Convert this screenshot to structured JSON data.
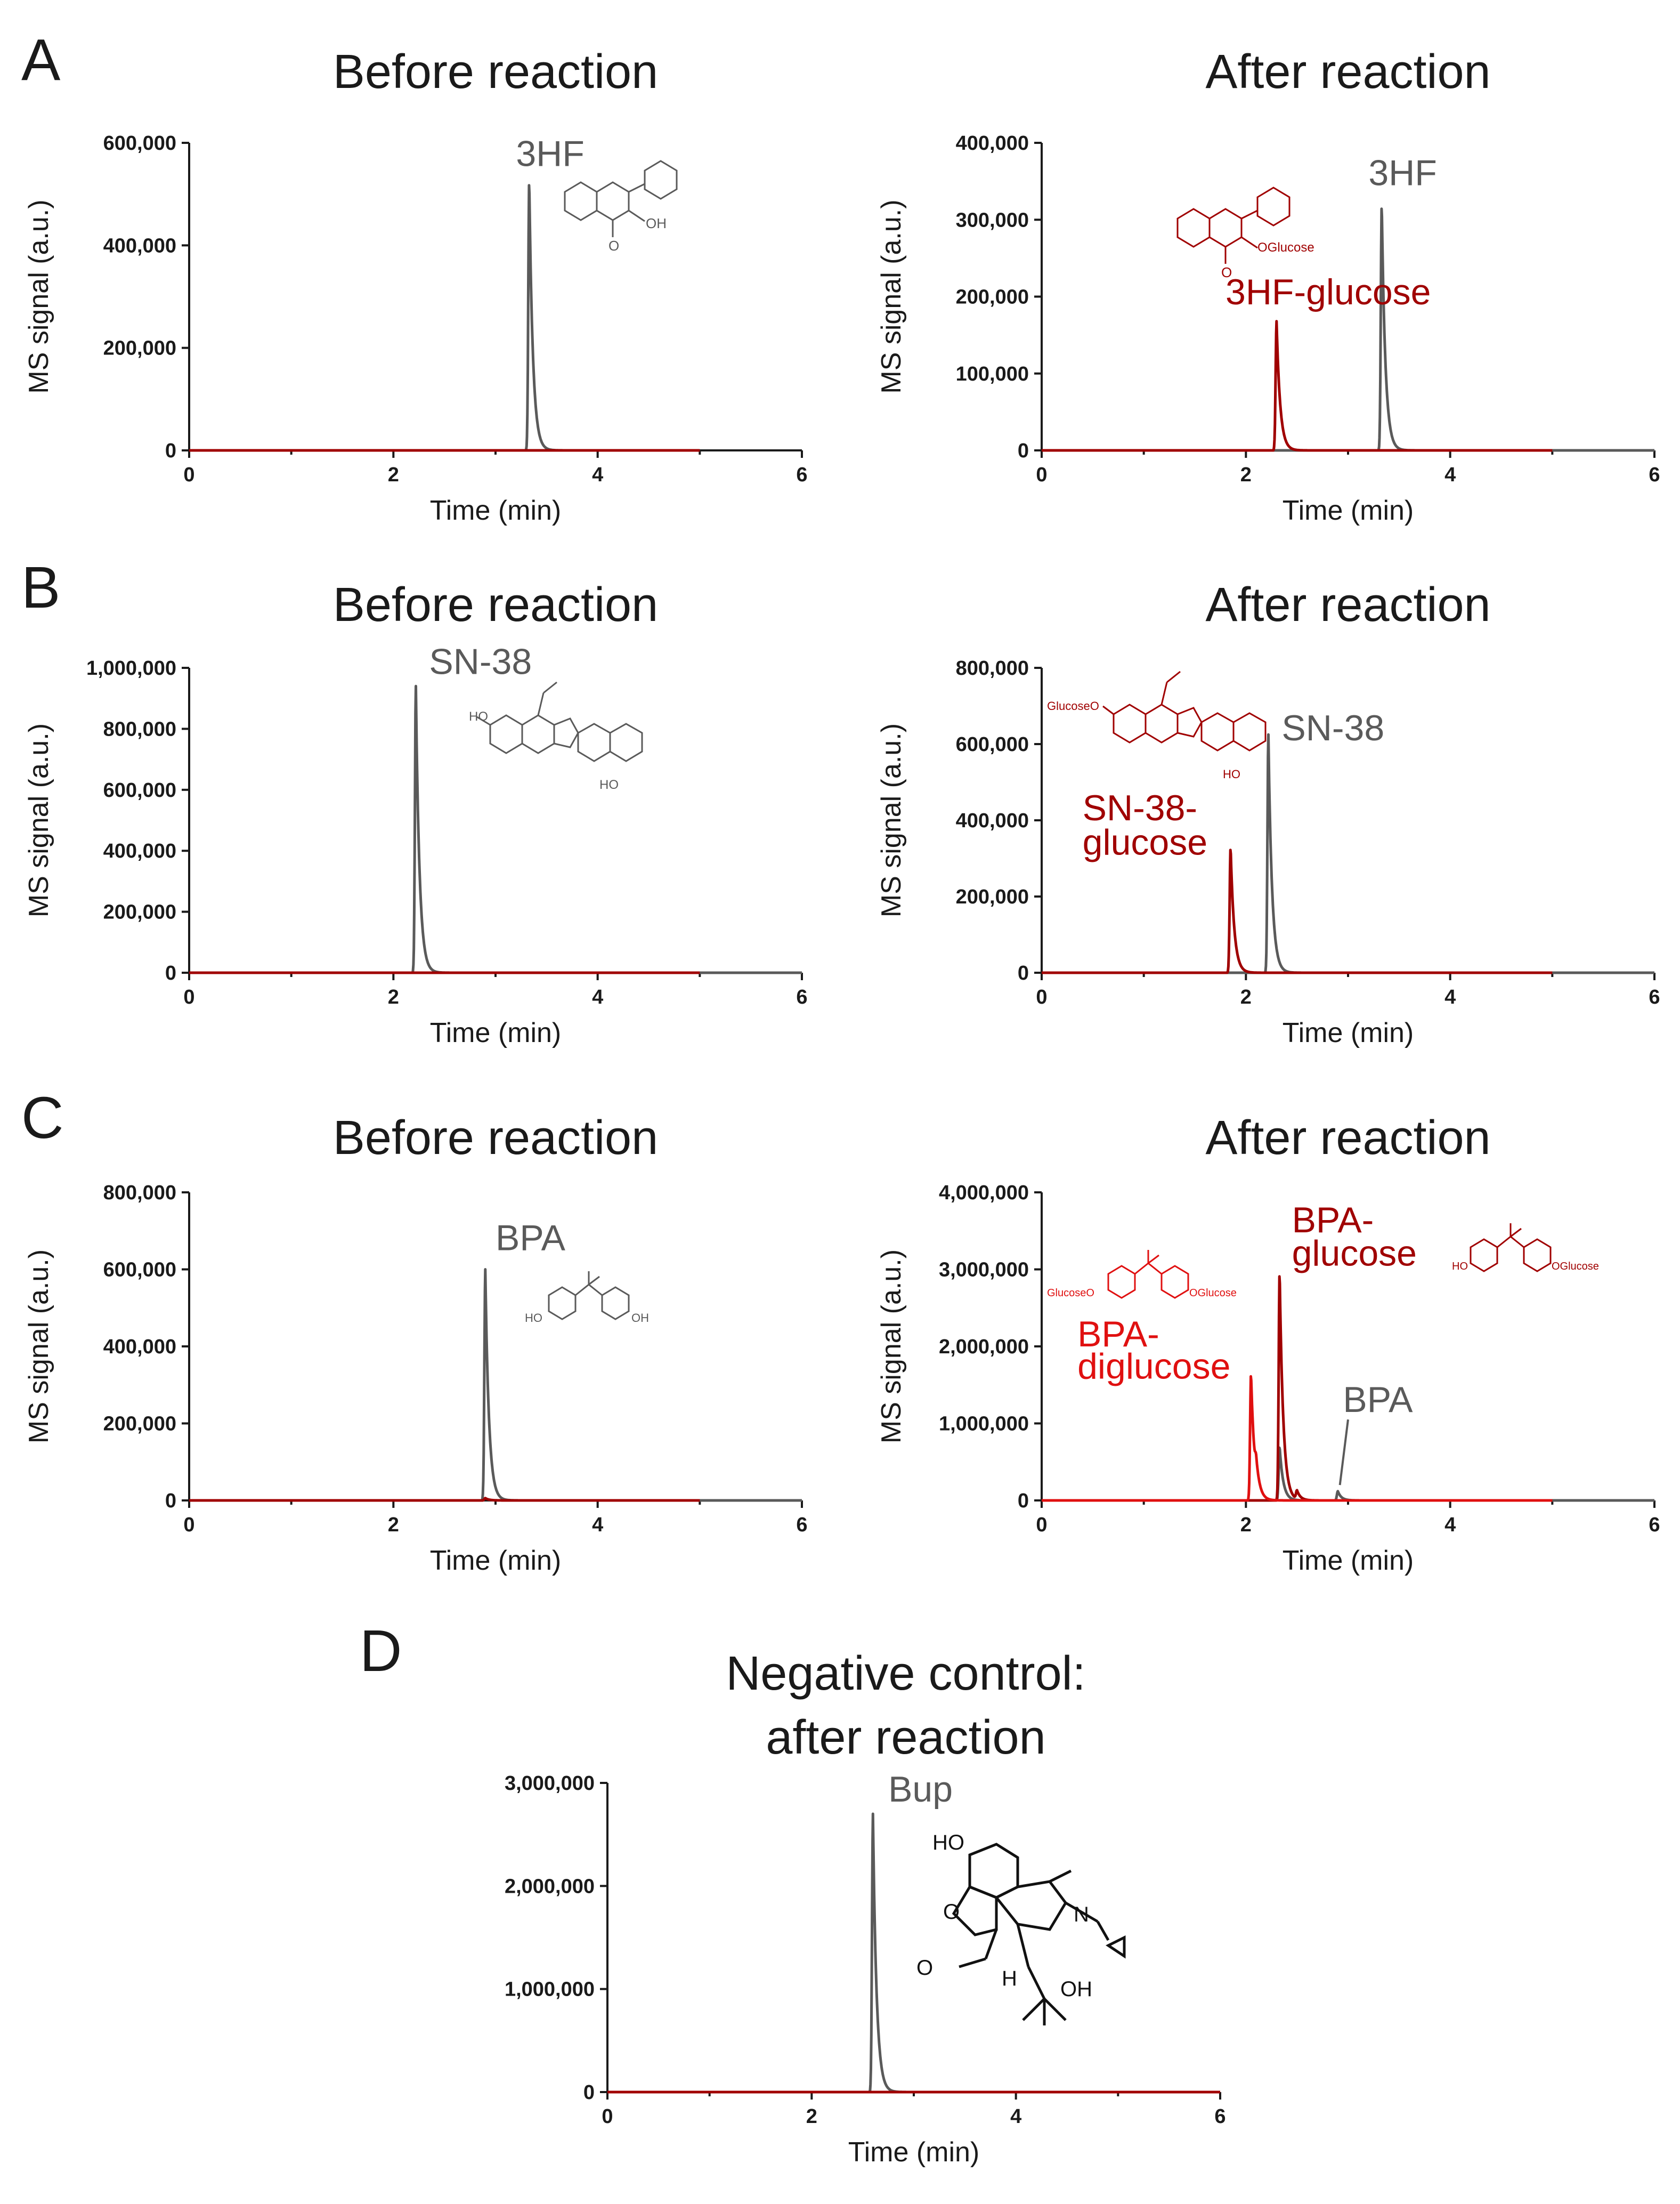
{
  "colors": {
    "gray": "#5a5a5a",
    "darkred": "#a00000",
    "red": "#e01010",
    "axis": "#1a1a1a"
  },
  "panels": [
    {
      "letter": "A",
      "charts": [
        0,
        1
      ]
    },
    {
      "letter": "B",
      "charts": [
        2,
        3
      ]
    },
    {
      "letter": "C",
      "charts": [
        4,
        5
      ]
    },
    {
      "letter": "D",
      "charts": [
        6
      ]
    }
  ],
  "chart_data": [
    {
      "type": "line",
      "title": "Before reaction",
      "xlabel": "Time (min)",
      "ylabel": "MS signal (a.u.)",
      "xlim": [
        0,
        6
      ],
      "ylim": [
        0,
        600000
      ],
      "xticks": [
        "0",
        "2",
        "4",
        "6"
      ],
      "yticks": [
        "0",
        "200,000",
        "400,000",
        "600,000"
      ],
      "series": [
        {
          "color": "gray",
          "trace_end": 5.0,
          "peaks": [
            {
              "x": 3.33,
              "y": 530000
            }
          ]
        },
        {
          "color": "darkred",
          "trace_end": 5.0,
          "peaks": []
        }
      ],
      "annotations": [
        {
          "text": "3HF",
          "color": "gray",
          "x": 3.2,
          "y": 555000
        }
      ]
    },
    {
      "type": "line",
      "title": "After reaction",
      "xlabel": "Time (min)",
      "ylabel": "MS signal (a.u.)",
      "xlim": [
        0,
        6
      ],
      "ylim": [
        0,
        400000
      ],
      "xticks": [
        "0",
        "2",
        "4",
        "6"
      ],
      "yticks": [
        "0",
        "100,000",
        "200,000",
        "300,000",
        "400,000"
      ],
      "series": [
        {
          "color": "gray",
          "trace_end": 6.0,
          "peaks": [
            {
              "x": 3.33,
              "y": 322000
            }
          ]
        },
        {
          "color": "darkred",
          "trace_end": 5.0,
          "peaks": [
            {
              "x": 2.3,
              "y": 168000
            }
          ]
        }
      ],
      "annotations": [
        {
          "text": "3HF",
          "color": "gray",
          "x": 3.2,
          "y": 345000
        },
        {
          "text": "3HF-glucose",
          "color": "darkred",
          "x": 1.8,
          "y": 190000
        }
      ],
      "structure_labels": [
        {
          "text": "OGlucose",
          "color": "darkred"
        }
      ]
    },
    {
      "type": "line",
      "title": "Before reaction",
      "xlabel": "Time (min)",
      "ylabel": "MS signal (a.u.)",
      "xlim": [
        0,
        6
      ],
      "ylim": [
        0,
        1000000
      ],
      "xticks": [
        "0",
        "2",
        "4",
        "6"
      ],
      "yticks": [
        "0",
        "200,000",
        "400,000",
        "600,000",
        "800,000",
        "1,000,000"
      ],
      "series": [
        {
          "color": "gray",
          "trace_end": 6.0,
          "peaks": [
            {
              "x": 2.22,
              "y": 940000
            }
          ]
        },
        {
          "color": "darkred",
          "trace_end": 5.0,
          "peaks": []
        }
      ],
      "annotations": [
        {
          "text": "SN-38",
          "color": "gray",
          "x": 2.35,
          "y": 980000
        }
      ]
    },
    {
      "type": "line",
      "title": "After reaction",
      "xlabel": "Time (min)",
      "ylabel": "MS signal (a.u.)",
      "xlim": [
        0,
        6
      ],
      "ylim": [
        0,
        800000
      ],
      "xticks": [
        "0",
        "2",
        "4",
        "6"
      ],
      "yticks": [
        "0",
        "200,000",
        "400,000",
        "600,000",
        "800,000"
      ],
      "series": [
        {
          "color": "gray",
          "trace_end": 6.0,
          "peaks": [
            {
              "x": 2.22,
              "y": 625000
            }
          ]
        },
        {
          "color": "darkred",
          "trace_end": 5.0,
          "peaks": [
            {
              "x": 1.85,
              "y": 330000
            }
          ]
        }
      ],
      "annotations": [
        {
          "text": "SN-38",
          "color": "gray",
          "x": 2.35,
          "y": 610000
        },
        {
          "text": "SN-38-",
          "color": "darkred",
          "x": 0.4,
          "y": 400000
        },
        {
          "text": "glucose",
          "color": "darkred",
          "x": 0.4,
          "y": 310000
        }
      ],
      "structure_labels": [
        {
          "text": "GlucoseO",
          "color": "darkred"
        }
      ]
    },
    {
      "type": "line",
      "title": "Before reaction",
      "xlabel": "Time (min)",
      "ylabel": "MS signal (a.u.)",
      "xlim": [
        0,
        6
      ],
      "ylim": [
        0,
        800000
      ],
      "xticks": [
        "0",
        "2",
        "4",
        "6"
      ],
      "yticks": [
        "0",
        "200,000",
        "400,000",
        "600,000",
        "800,000"
      ],
      "series": [
        {
          "color": "gray",
          "trace_end": 6.0,
          "peaks": [
            {
              "x": 2.9,
              "y": 600000
            }
          ]
        },
        {
          "color": "darkred",
          "trace_end": 5.0,
          "peaks": [
            {
              "x": 2.9,
              "y": 6000
            }
          ]
        }
      ],
      "annotations": [
        {
          "text": "BPA",
          "color": "gray",
          "x": 3.0,
          "y": 650000
        }
      ]
    },
    {
      "type": "line",
      "title": "After reaction",
      "xlabel": "Time (min)",
      "ylabel": "MS signal (a.u.)",
      "xlim": [
        0,
        6
      ],
      "ylim": [
        0,
        4000000
      ],
      "xticks": [
        "0",
        "2",
        "4",
        "6"
      ],
      "yticks": [
        "0",
        "1,000,000",
        "2,000,000",
        "3,000,000",
        "4,000,000"
      ],
      "series": [
        {
          "color": "gray",
          "trace_end": 6.0,
          "peaks": [
            {
              "x": 2.33,
              "y": 700000
            },
            {
              "x": 2.9,
              "y": 120000
            }
          ]
        },
        {
          "color": "darkred",
          "trace_end": 5.0,
          "peaks": [
            {
              "x": 2.33,
              "y": 2980000
            },
            {
              "x": 2.5,
              "y": 110000
            }
          ]
        },
        {
          "color": "red",
          "trace_end": 5.0,
          "peaks": [
            {
              "x": 2.05,
              "y": 1650000
            },
            {
              "x": 2.1,
              "y": 200000
            }
          ]
        }
      ],
      "annotations": [
        {
          "text": "BPA-",
          "color": "darkred",
          "x": 2.45,
          "y": 3480000
        },
        {
          "text": "glucose",
          "color": "darkred",
          "x": 2.45,
          "y": 3050000
        },
        {
          "text": "BPA-",
          "color": "red",
          "x": 0.35,
          "y": 2000000
        },
        {
          "text": "diglucose",
          "color": "red",
          "x": 0.35,
          "y": 1580000
        },
        {
          "text": "BPA",
          "color": "gray",
          "x": 2.95,
          "y": 1150000
        }
      ],
      "structure_labels": [
        {
          "text": "GlucoseO",
          "color": "red"
        },
        {
          "text": "OGlucose",
          "color": "red"
        },
        {
          "text": "OGlucose",
          "color": "darkred"
        }
      ]
    },
    {
      "type": "line",
      "title": "Negative control:",
      "title2": "after reaction",
      "xlabel": "Time (min)",
      "ylabel": "",
      "xlim": [
        0,
        6
      ],
      "ylim": [
        0,
        3000000
      ],
      "xticks": [
        "0",
        "2",
        "4",
        "6"
      ],
      "yticks": [
        "0",
        "1,000,000",
        "2,000,000",
        "3,000,000"
      ],
      "series": [
        {
          "color": "gray",
          "trace_end": 6.0,
          "peaks": [
            {
              "x": 2.6,
              "y": 2700000
            }
          ]
        },
        {
          "color": "darkred",
          "trace_end": 6.0,
          "peaks": []
        }
      ],
      "annotations": [
        {
          "text": "Bup",
          "color": "gray",
          "x": 2.75,
          "y": 2820000
        }
      ]
    }
  ]
}
